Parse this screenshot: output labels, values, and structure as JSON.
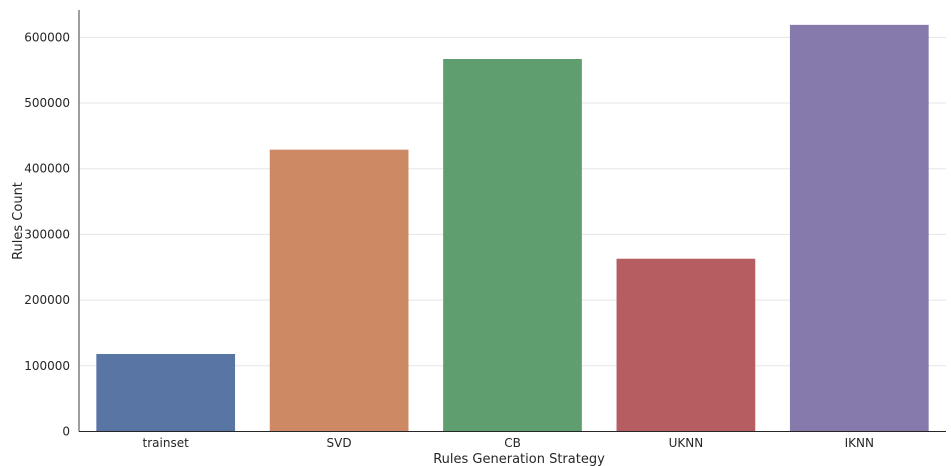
{
  "chart_data": {
    "type": "bar",
    "title": "",
    "xlabel": "Rules Generation Strategy",
    "ylabel": "Rules Count",
    "categories": [
      "trainset",
      "SVD",
      "CB",
      "UKNN",
      "IKNN"
    ],
    "values": [
      118000,
      429000,
      567000,
      263000,
      619000
    ],
    "colors": [
      "#5975a4",
      "#cc8963",
      "#5f9e6e",
      "#b55d60",
      "#857aab"
    ],
    "ylim": [
      0,
      645000
    ],
    "yticks": [
      0,
      100000,
      200000,
      300000,
      400000,
      500000,
      600000
    ],
    "ytick_labels": [
      "0",
      "100000",
      "200000",
      "300000",
      "400000",
      "500000",
      "600000"
    ],
    "grid": "horizontal",
    "legend": "none"
  }
}
